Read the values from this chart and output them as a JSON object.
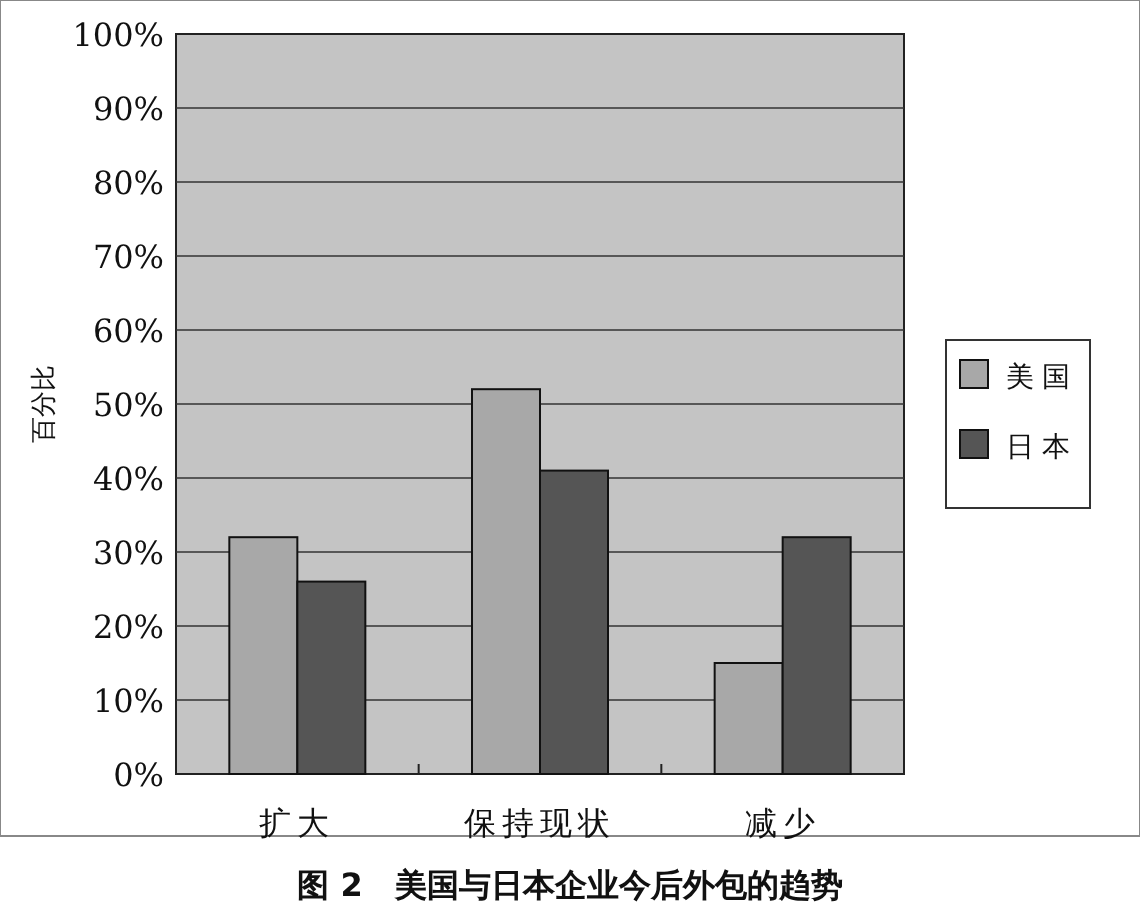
{
  "chart_data": {
    "type": "bar",
    "title": "图 2　美国与日本企业今后外包的趋势",
    "ylabel": "百分比",
    "categories": [
      "扩大",
      "保持现状",
      "减少"
    ],
    "series": [
      {
        "name": "美国",
        "color": "#a8a8a8",
        "values": [
          32,
          52,
          15
        ]
      },
      {
        "name": "日本",
        "color": "#555555",
        "values": [
          26,
          41,
          32
        ]
      }
    ],
    "ylim": [
      0,
      100
    ],
    "yticks": [
      {
        "value": 0,
        "label": "0%"
      },
      {
        "value": 10,
        "label": "10%"
      },
      {
        "value": 20,
        "label": "20%"
      },
      {
        "value": 30,
        "label": "30%"
      },
      {
        "value": 40,
        "label": "40%"
      },
      {
        "value": 50,
        "label": "50%"
      },
      {
        "value": 60,
        "label": "60%"
      },
      {
        "value": 70,
        "label": "70%"
      },
      {
        "value": 80,
        "label": "80%"
      },
      {
        "value": 90,
        "label": "90%"
      },
      {
        "value": 100,
        "label": "100%"
      }
    ],
    "grid": "y",
    "legend": "right"
  }
}
